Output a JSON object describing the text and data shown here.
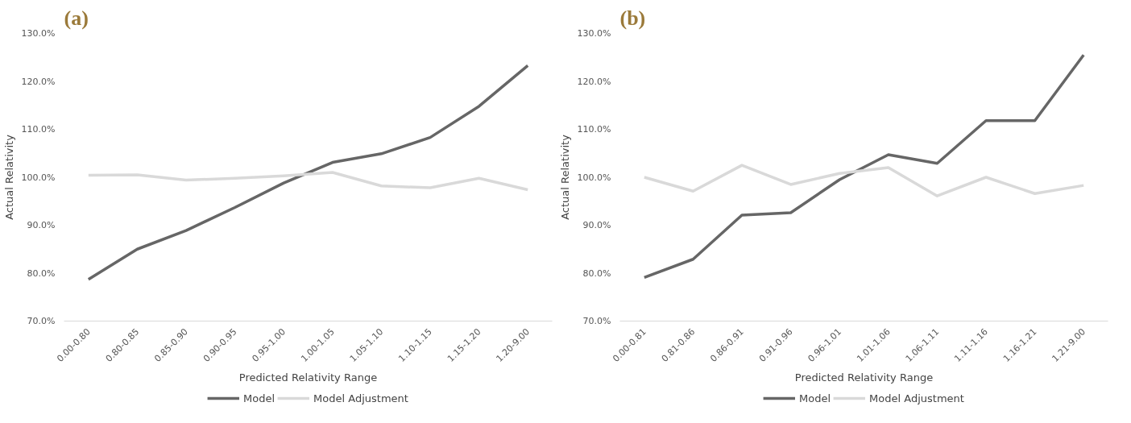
{
  "chart_data": [
    {
      "type": "line",
      "title": "(a)",
      "xlabel": "Predicted Relativity Range",
      "ylabel": "Actual Relativity",
      "categories": [
        "0.00-0.80",
        "0.80-0.85",
        "0.85-0.90",
        "0.90-0.95",
        "0.95-1.00",
        "1.00-1.05",
        "1.05-1.10",
        "1.10-1.15",
        "1.15-1.20",
        "1.20-9.00"
      ],
      "series": [
        {
          "name": "Model",
          "color": "#666666",
          "values": [
            78.7,
            85.0,
            88.9,
            93.7,
            98.8,
            103.1,
            104.9,
            108.3,
            114.8,
            123.3
          ]
        },
        {
          "name": "Model Adjustment",
          "color": "#d9d9d9",
          "values": [
            100.4,
            100.5,
            99.4,
            99.8,
            100.3,
            101.0,
            98.2,
            97.8,
            99.8,
            97.4
          ]
        }
      ],
      "ylim": [
        70,
        130
      ],
      "yticks": [
        {
          "value": 70,
          "label": "70.0%"
        },
        {
          "value": 80,
          "label": "80.0%"
        },
        {
          "value": 90,
          "label": "90.0%"
        },
        {
          "value": 100,
          "label": "100.0%"
        },
        {
          "value": 110,
          "label": "110.0%"
        },
        {
          "value": 120,
          "label": "120.0%"
        },
        {
          "value": 130,
          "label": "130.0%"
        }
      ],
      "grid": false,
      "legend": "bottom",
      "marker": "none",
      "line_style": "solid"
    },
    {
      "type": "line",
      "title": "(b)",
      "xlabel": "Predicted Relativity Range",
      "ylabel": "Actual Relativity",
      "categories": [
        "0.00-0.81",
        "0.81-0.86",
        "0.86-0.91",
        "0.91-0.96",
        "0.96-1.01",
        "1.01-1.06",
        "1.06-1.11",
        "1.11-1.16",
        "1.16-1.21",
        "1.21-9.00"
      ],
      "series": [
        {
          "name": "Model",
          "color": "#666666",
          "values": [
            79.1,
            82.9,
            92.1,
            92.6,
            99.5,
            104.7,
            102.9,
            111.8,
            111.8,
            125.5
          ]
        },
        {
          "name": "Model Adjustment",
          "color": "#d9d9d9",
          "values": [
            100.0,
            97.1,
            102.5,
            98.5,
            100.8,
            102.0,
            96.1,
            100.0,
            96.6,
            98.3
          ]
        }
      ],
      "ylim": [
        70,
        130
      ],
      "yticks": [
        {
          "value": 70,
          "label": "70.0%"
        },
        {
          "value": 80,
          "label": "80.0%"
        },
        {
          "value": 90,
          "label": "90.0%"
        },
        {
          "value": 100,
          "label": "100.0%"
        },
        {
          "value": 110,
          "label": "110.0%"
        },
        {
          "value": 120,
          "label": "120.0%"
        },
        {
          "value": 130,
          "label": "130.0%"
        }
      ],
      "grid": false,
      "legend": "bottom",
      "marker": "none",
      "line_style": "solid"
    }
  ]
}
